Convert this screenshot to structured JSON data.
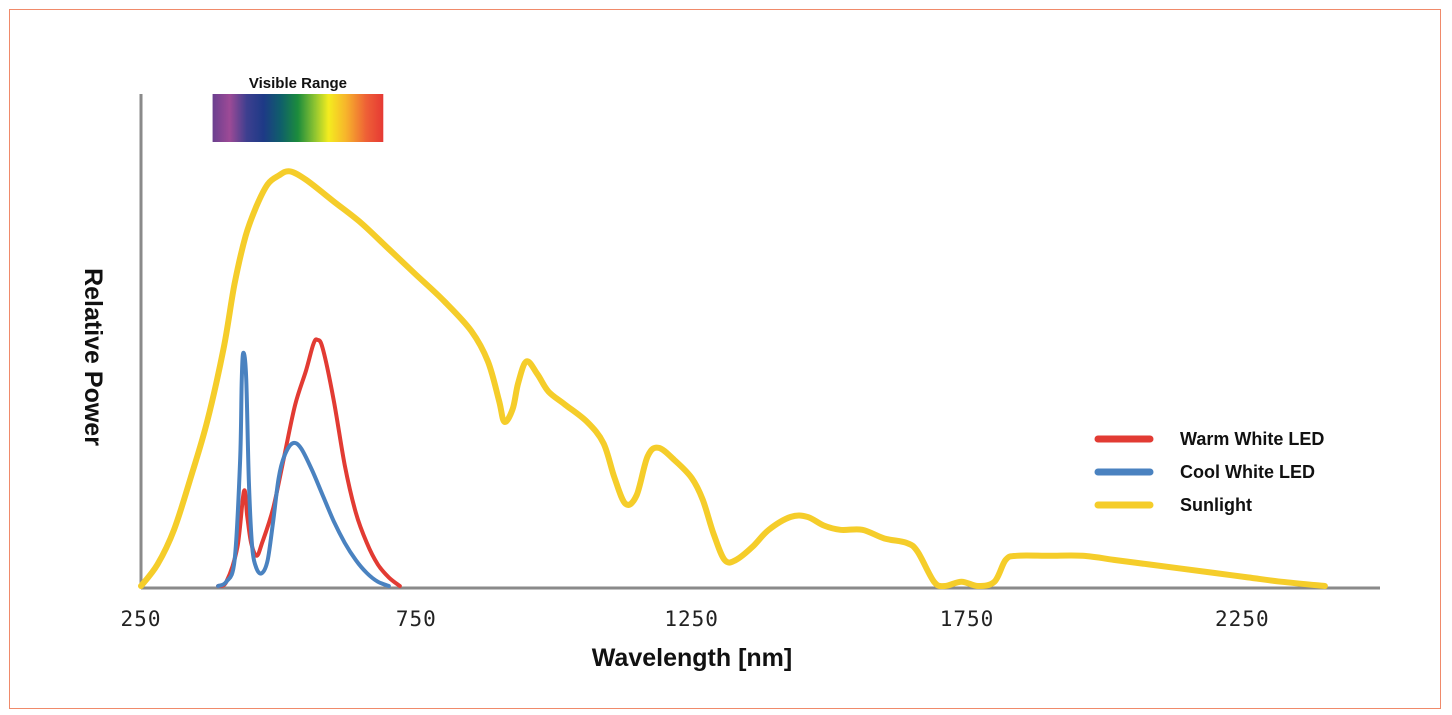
{
  "chart_data": {
    "type": "line",
    "xlabel": "Wavelength [nm]",
    "ylabel": "Relative Power",
    "xlim": [
      250,
      2500
    ],
    "ylim": [
      0,
      100
    ],
    "x_ticks": [
      "250",
      "750",
      "1250",
      "1750",
      "2250"
    ],
    "annotation": "Visible Range",
    "visible_range_nm": [
      380,
      690
    ],
    "legend_position": "right",
    "grid": false,
    "series": [
      {
        "name": "Warm White LED",
        "color": "#e23b33",
        "points": [
          [
            390,
            0
          ],
          [
            405,
            1
          ],
          [
            425,
            9
          ],
          [
            437,
            22
          ],
          [
            443,
            16
          ],
          [
            450,
            10
          ],
          [
            460,
            7
          ],
          [
            470,
            10
          ],
          [
            490,
            18
          ],
          [
            510,
            30
          ],
          [
            530,
            42
          ],
          [
            550,
            50
          ],
          [
            563,
            56
          ],
          [
            570,
            57
          ],
          [
            580,
            55
          ],
          [
            600,
            43
          ],
          [
            620,
            28
          ],
          [
            640,
            17
          ],
          [
            660,
            10
          ],
          [
            680,
            5
          ],
          [
            700,
            2
          ],
          [
            720,
            0
          ]
        ]
      },
      {
        "name": "Cool White LED",
        "color": "#4a82c0",
        "points": [
          [
            390,
            0
          ],
          [
            405,
            1
          ],
          [
            420,
            6
          ],
          [
            430,
            29
          ],
          [
            433,
            48
          ],
          [
            436,
            54
          ],
          [
            441,
            48
          ],
          [
            446,
            24
          ],
          [
            452,
            9
          ],
          [
            460,
            4
          ],
          [
            470,
            3
          ],
          [
            480,
            6
          ],
          [
            490,
            15
          ],
          [
            500,
            25
          ],
          [
            510,
            30
          ],
          [
            525,
            33
          ],
          [
            540,
            32
          ],
          [
            560,
            27
          ],
          [
            580,
            21
          ],
          [
            600,
            15
          ],
          [
            620,
            10
          ],
          [
            640,
            6
          ],
          [
            660,
            3
          ],
          [
            680,
            1
          ],
          [
            700,
            0
          ]
        ]
      },
      {
        "name": "Sunlight",
        "color": "#f5cd2a",
        "points": [
          [
            250,
            0
          ],
          [
            280,
            5
          ],
          [
            310,
            13
          ],
          [
            340,
            25
          ],
          [
            370,
            38
          ],
          [
            400,
            55
          ],
          [
            420,
            70
          ],
          [
            440,
            81
          ],
          [
            460,
            88
          ],
          [
            480,
            93
          ],
          [
            500,
            95
          ],
          [
            520,
            96
          ],
          [
            550,
            94
          ],
          [
            600,
            89
          ],
          [
            650,
            84
          ],
          [
            700,
            78
          ],
          [
            750,
            72
          ],
          [
            800,
            66
          ],
          [
            850,
            59
          ],
          [
            880,
            52
          ],
          [
            900,
            43
          ],
          [
            910,
            38
          ],
          [
            925,
            41
          ],
          [
            935,
            47
          ],
          [
            950,
            52
          ],
          [
            970,
            49
          ],
          [
            990,
            45
          ],
          [
            1020,
            42
          ],
          [
            1060,
            38
          ],
          [
            1090,
            33
          ],
          [
            1110,
            25
          ],
          [
            1130,
            19
          ],
          [
            1150,
            21
          ],
          [
            1170,
            30
          ],
          [
            1190,
            32
          ],
          [
            1220,
            29
          ],
          [
            1250,
            25
          ],
          [
            1270,
            20
          ],
          [
            1290,
            12
          ],
          [
            1310,
            6
          ],
          [
            1330,
            6
          ],
          [
            1360,
            9
          ],
          [
            1390,
            13
          ],
          [
            1430,
            16
          ],
          [
            1460,
            16
          ],
          [
            1490,
            14
          ],
          [
            1520,
            13
          ],
          [
            1560,
            13
          ],
          [
            1600,
            11
          ],
          [
            1640,
            10
          ],
          [
            1660,
            8
          ],
          [
            1690,
            1
          ],
          [
            1710,
            0
          ],
          [
            1740,
            1
          ],
          [
            1770,
            0
          ],
          [
            1800,
            1
          ],
          [
            1820,
            6
          ],
          [
            1840,
            7
          ],
          [
            1900,
            7
          ],
          [
            1960,
            7
          ],
          [
            2020,
            6
          ],
          [
            2080,
            5
          ],
          [
            2140,
            4
          ],
          [
            2200,
            3
          ],
          [
            2260,
            2
          ],
          [
            2320,
            1
          ],
          [
            2400,
            0
          ]
        ]
      }
    ]
  }
}
